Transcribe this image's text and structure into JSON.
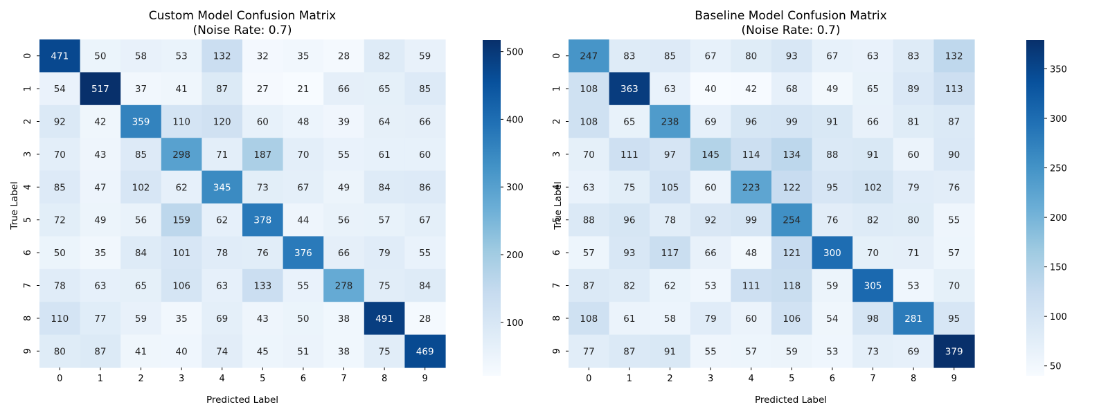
{
  "chart_data": [
    {
      "type": "heatmap",
      "title": "Custom Model Confusion Matrix",
      "subtitle": "(Noise Rate: 0.7)",
      "xlabel": "Predicted Label",
      "ylabel": "True Label",
      "x_ticks": [
        "0",
        "1",
        "2",
        "3",
        "4",
        "5",
        "6",
        "7",
        "8",
        "9"
      ],
      "y_ticks": [
        "0",
        "1",
        "2",
        "3",
        "4",
        "5",
        "6",
        "7",
        "8",
        "9"
      ],
      "colormap": "Blues",
      "value_range": [
        21,
        517
      ],
      "colorbar_ticks": [
        100,
        200,
        300,
        400,
        500
      ],
      "values": [
        [
          471,
          50,
          58,
          53,
          132,
          32,
          35,
          28,
          82,
          59
        ],
        [
          54,
          517,
          37,
          41,
          87,
          27,
          21,
          66,
          65,
          85
        ],
        [
          92,
          42,
          359,
          110,
          120,
          60,
          48,
          39,
          64,
          66
        ],
        [
          70,
          43,
          85,
          298,
          71,
          187,
          70,
          55,
          61,
          60
        ],
        [
          85,
          47,
          102,
          62,
          345,
          73,
          67,
          49,
          84,
          86
        ],
        [
          72,
          49,
          56,
          159,
          62,
          378,
          44,
          56,
          57,
          67
        ],
        [
          50,
          35,
          84,
          101,
          78,
          76,
          376,
          66,
          79,
          55
        ],
        [
          78,
          63,
          65,
          106,
          63,
          133,
          55,
          278,
          75,
          84
        ],
        [
          110,
          77,
          59,
          35,
          69,
          43,
          50,
          38,
          491,
          28
        ],
        [
          80,
          87,
          41,
          40,
          74,
          45,
          51,
          38,
          75,
          469
        ]
      ]
    },
    {
      "type": "heatmap",
      "title": "Baseline Model Confusion Matrix",
      "subtitle": "(Noise Rate: 0.7)",
      "xlabel": "Predicted Label",
      "ylabel": "True Label",
      "x_ticks": [
        "0",
        "1",
        "2",
        "3",
        "4",
        "5",
        "6",
        "7",
        "8",
        "9"
      ],
      "y_ticks": [
        "0",
        "1",
        "2",
        "3",
        "4",
        "5",
        "6",
        "7",
        "8",
        "9"
      ],
      "colormap": "Blues",
      "value_range": [
        40,
        379
      ],
      "colorbar_ticks": [
        50,
        100,
        150,
        200,
        250,
        300,
        350
      ],
      "values": [
        [
          247,
          83,
          85,
          67,
          80,
          93,
          67,
          63,
          83,
          132
        ],
        [
          108,
          363,
          63,
          40,
          42,
          68,
          49,
          65,
          89,
          113
        ],
        [
          108,
          65,
          238,
          69,
          96,
          99,
          91,
          66,
          81,
          87
        ],
        [
          70,
          111,
          97,
          145,
          114,
          134,
          88,
          91,
          60,
          90
        ],
        [
          63,
          75,
          105,
          60,
          223,
          122,
          95,
          102,
          79,
          76
        ],
        [
          88,
          96,
          78,
          92,
          99,
          254,
          76,
          82,
          80,
          55
        ],
        [
          57,
          93,
          117,
          66,
          48,
          121,
          300,
          70,
          71,
          57
        ],
        [
          87,
          82,
          62,
          53,
          111,
          118,
          59,
          305,
          53,
          70
        ],
        [
          108,
          61,
          58,
          79,
          60,
          106,
          54,
          98,
          281,
          95
        ],
        [
          77,
          87,
          91,
          55,
          57,
          59,
          53,
          73,
          69,
          379
        ]
      ]
    }
  ]
}
